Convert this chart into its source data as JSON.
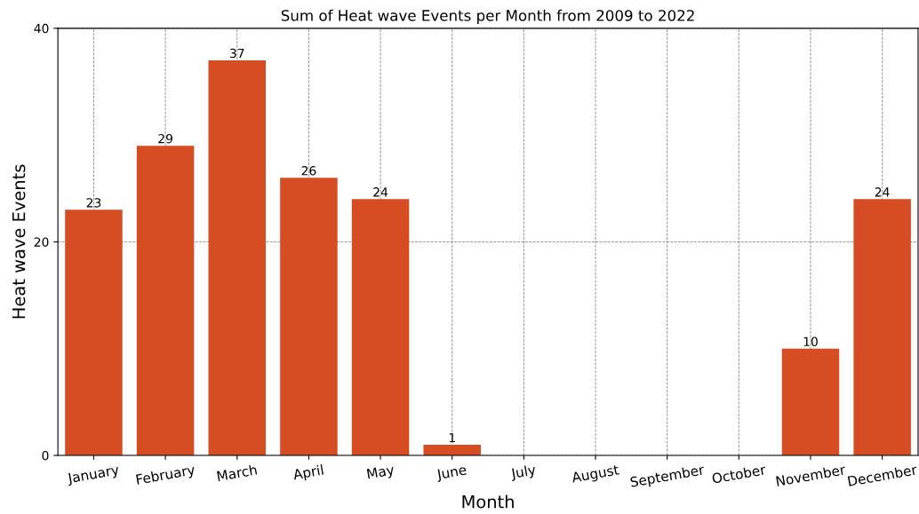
{
  "chart_data": {
    "type": "bar",
    "title": "Sum of Heat wave Events per Month from 2009 to 2022",
    "xlabel": "Month",
    "ylabel": "Heat wave Events",
    "categories": [
      "January",
      "February",
      "March",
      "April",
      "May",
      "June",
      "July",
      "August",
      "September",
      "October",
      "November",
      "December"
    ],
    "values": [
      23,
      29,
      37,
      26,
      24,
      1,
      0,
      0,
      0,
      0,
      10,
      24
    ],
    "value_labels": [
      "23",
      "29",
      "37",
      "26",
      "24",
      "1",
      null,
      null,
      null,
      null,
      "10",
      "24"
    ],
    "color": "#d64c23",
    "ylim": [
      0,
      40
    ],
    "yticks": [
      0,
      20,
      40
    ],
    "grid": true
  }
}
